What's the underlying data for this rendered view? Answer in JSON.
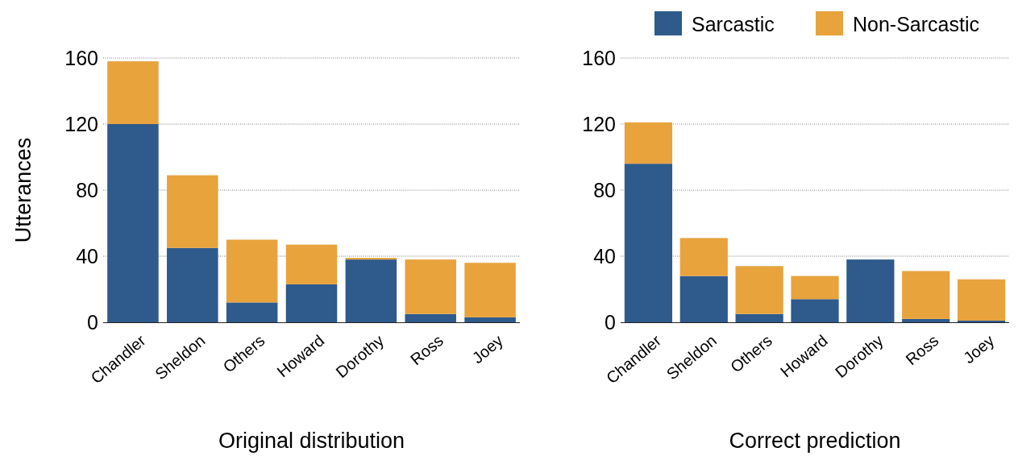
{
  "chart_data": [
    {
      "type": "bar",
      "stacked": true,
      "xlabel": "Original distribution",
      "ylabel": "Utterances",
      "categories": [
        "Chandler",
        "Sheldon",
        "Others",
        "Howard",
        "Dorothy",
        "Ross",
        "Joey"
      ],
      "series": [
        {
          "color": "#2e5a8c",
          "values": [
            120,
            45,
            12,
            23,
            38,
            5,
            3
          ]
        },
        {
          "color": "#e8a33d",
          "values": [
            38,
            44,
            38,
            24,
            1,
            33,
            33
          ]
        }
      ],
      "ylim": [
        0,
        160
      ],
      "yticks": [
        0,
        40,
        80,
        120,
        160
      ],
      "grid": "y",
      "legend": false
    },
    {
      "type": "bar",
      "stacked": true,
      "xlabel": "Correct prediction",
      "categories": [
        "Chandler",
        "Sheldon",
        "Others",
        "Howard",
        "Dorothy",
        "Ross",
        "Joey"
      ],
      "series": [
        {
          "name": "Sarcastic",
          "color": "#2e5a8c",
          "values": [
            96,
            28,
            5,
            14,
            38,
            2,
            1
          ]
        },
        {
          "name": "Non-Sarcastic",
          "color": "#e8a33d",
          "values": [
            25,
            23,
            29,
            14,
            0,
            29,
            25
          ]
        }
      ],
      "ylim": [
        0,
        160
      ],
      "yticks": [
        0,
        40,
        80,
        120,
        160
      ],
      "grid": "y",
      "legend": "top right"
    }
  ]
}
